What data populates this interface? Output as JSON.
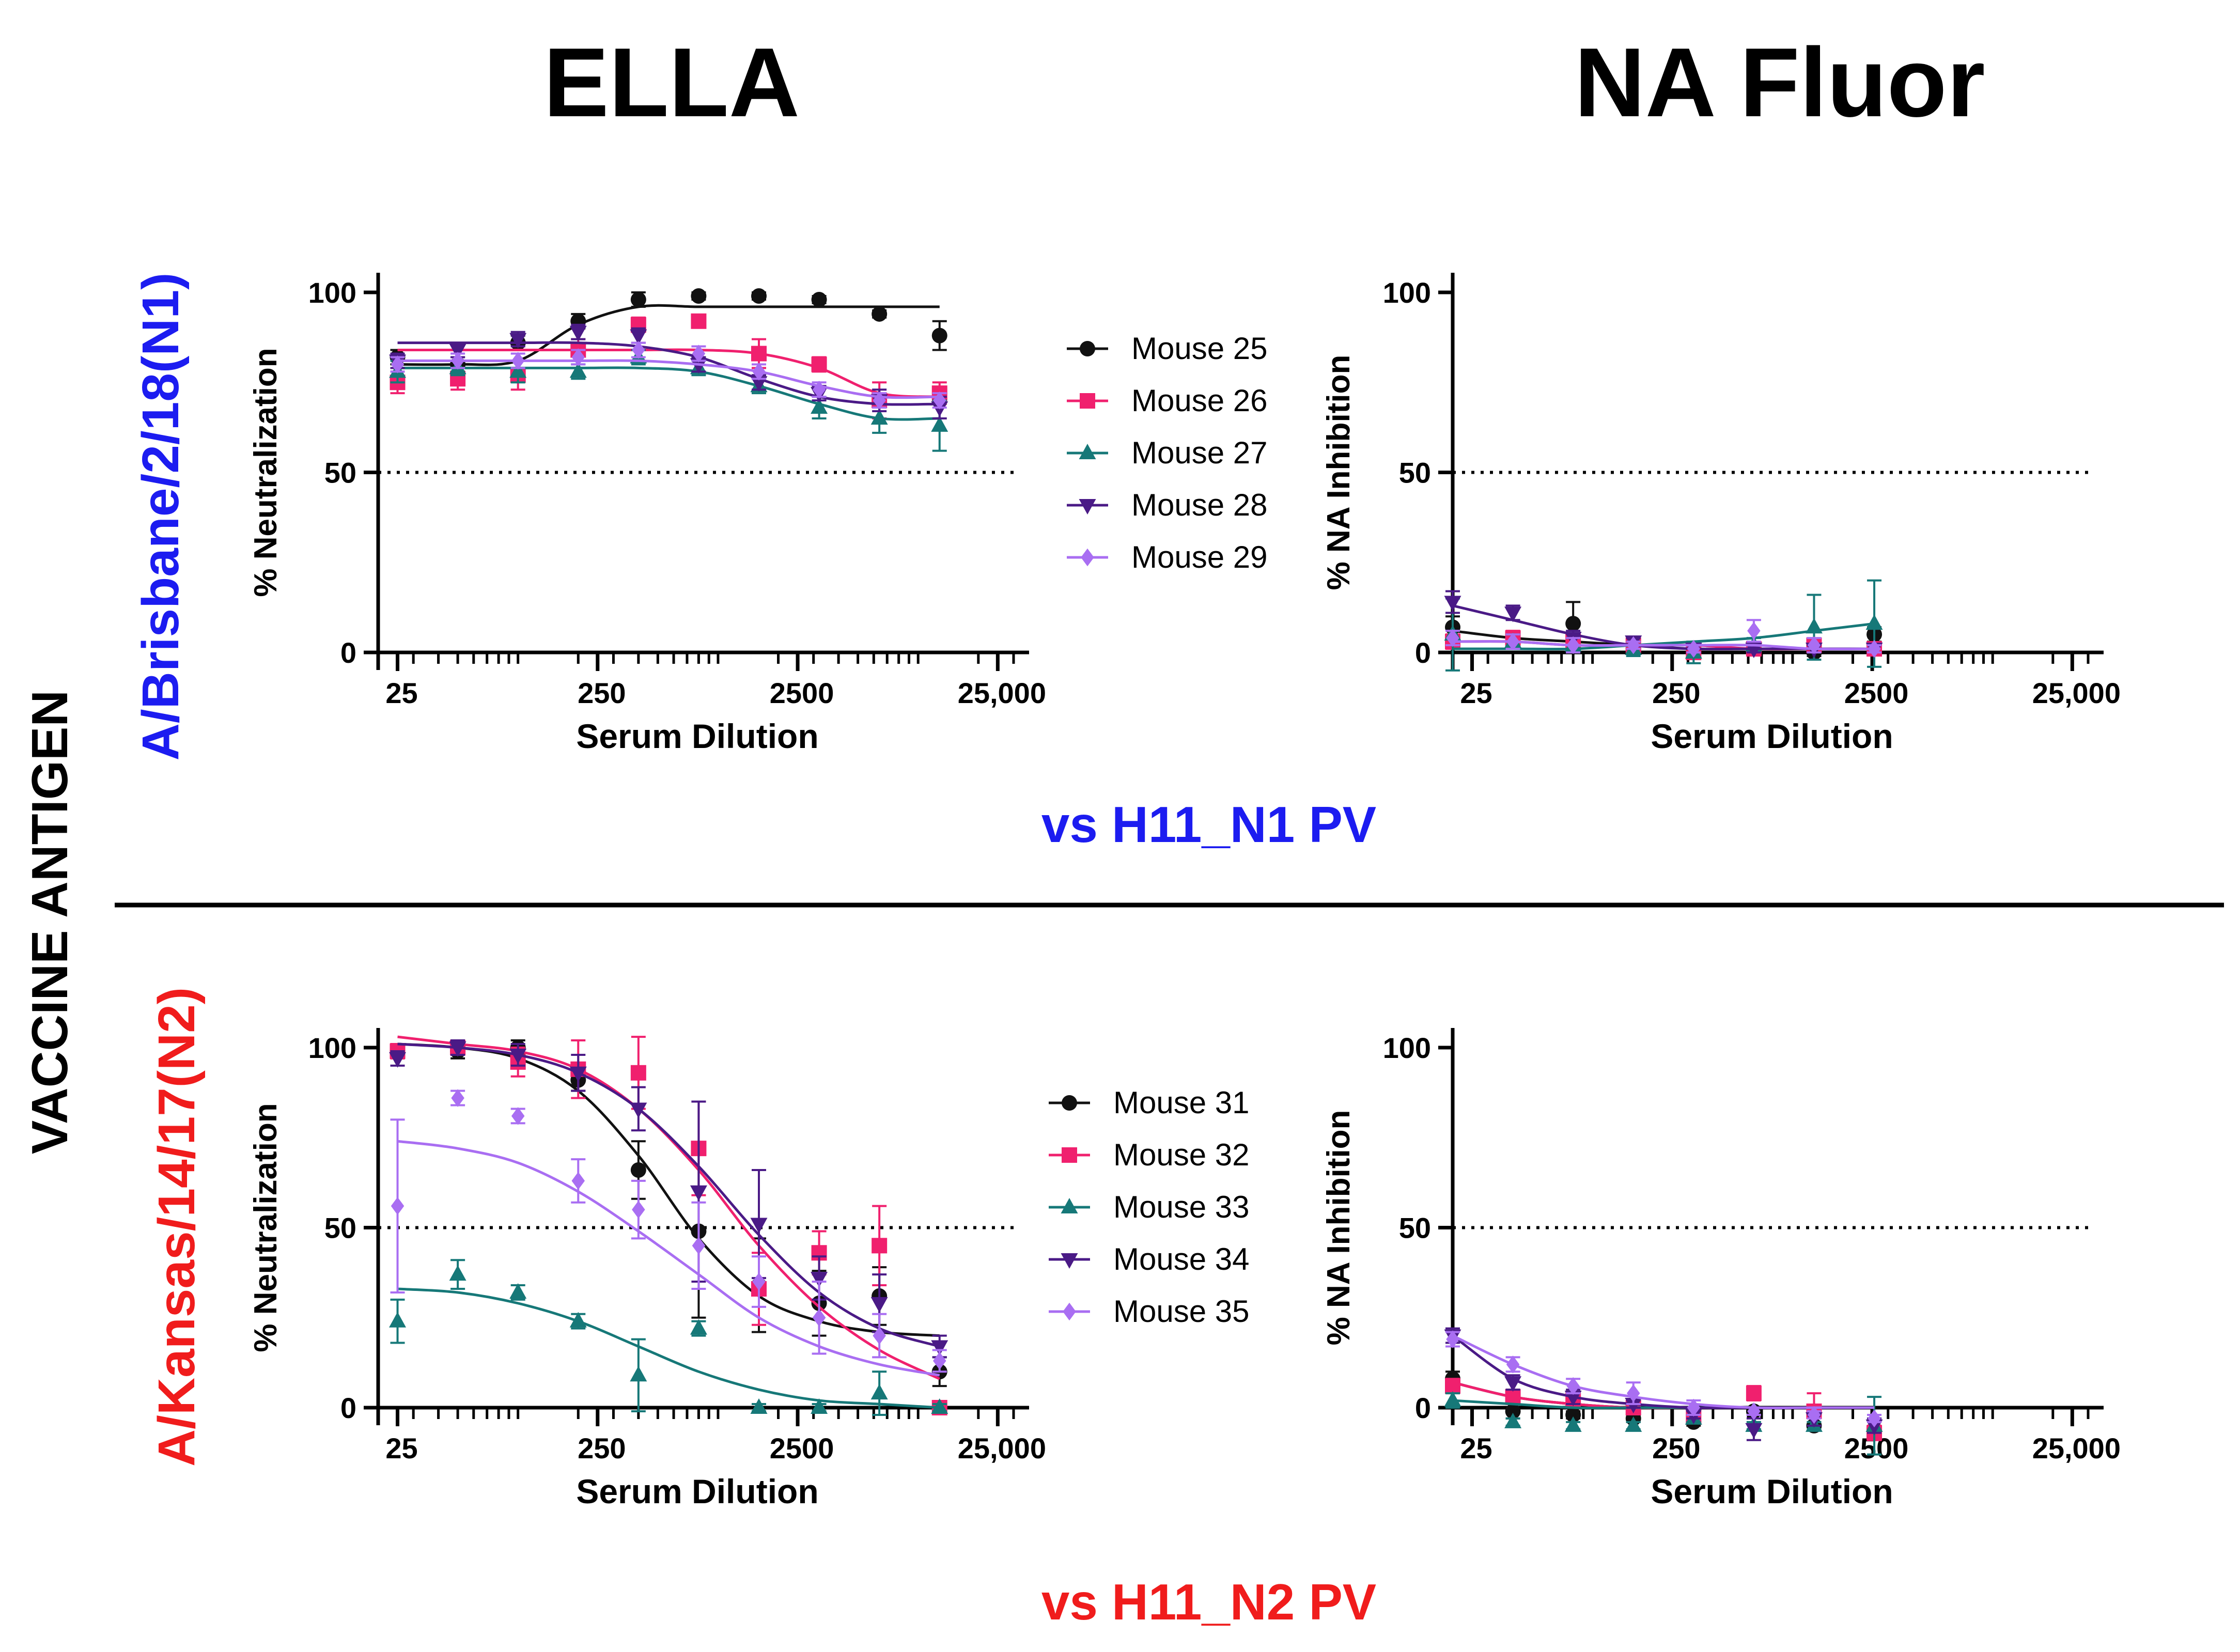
{
  "figure": {
    "col_titles": [
      "ELLA",
      "NA Fluor"
    ],
    "side_label": "VACCINE ANTIGEN",
    "rows": [
      {
        "antigen": "A/Brisbane/2/18(N1)",
        "versus": "vs H11_N1 PV",
        "color": "#1c1cf0"
      },
      {
        "antigen": "A/Kansas/14/17(N2)",
        "versus": "vs H11_N2 PV",
        "color": "#f01c1c"
      }
    ]
  },
  "chart_data": [
    {
      "id": "ella-n1",
      "type": "scatter",
      "xscale": "log",
      "xlim": [
        20,
        30000
      ],
      "ylim": [
        0,
        100
      ],
      "xticks": [
        25,
        250,
        2500,
        25000
      ],
      "xtick_labels": [
        "25",
        "250",
        "2500",
        "25,000"
      ],
      "yticks": [
        0,
        50,
        100
      ],
      "xlabel": "Serum Dilution",
      "ylabel": "% Neutralization",
      "threshold": 50,
      "x": [
        25,
        50,
        100,
        200,
        400,
        800,
        1600,
        3200,
        6400,
        12800
      ],
      "series": [
        {
          "name": "Mouse 25",
          "color": "#111111",
          "marker": "circle",
          "values": [
            82,
            80,
            86,
            92,
            98,
            99,
            99,
            98,
            94,
            88
          ],
          "errors": [
            2,
            2,
            2,
            2,
            2,
            1,
            1,
            1,
            1,
            4
          ],
          "fit": [
            80,
            80,
            81,
            91,
            96,
            96,
            96,
            96,
            96,
            96
          ]
        },
        {
          "name": "Mouse 26",
          "color": "#f0206e",
          "marker": "square",
          "values": [
            75,
            76,
            77,
            84,
            91,
            92,
            83,
            80,
            70,
            72
          ],
          "errors": [
            3,
            3,
            4,
            3,
            2,
            1,
            4,
            2,
            5,
            3
          ],
          "fit": [
            84,
            84,
            84,
            84,
            84,
            84,
            83,
            79,
            72,
            71
          ]
        },
        {
          "name": "Mouse 27",
          "color": "#167878",
          "marker": "triangle-up",
          "values": [
            78,
            79,
            78,
            78,
            82,
            79,
            74,
            68,
            65,
            63
          ],
          "errors": [
            3,
            2,
            3,
            2,
            2,
            2,
            2,
            3,
            4,
            7
          ],
          "fit": [
            79,
            79,
            79,
            79,
            79,
            78,
            74,
            69,
            65,
            65
          ]
        },
        {
          "name": "Mouse 28",
          "color": "#4a1a86",
          "marker": "triangle-down",
          "values": [
            81,
            84,
            87,
            89,
            88,
            80,
            75,
            72,
            70,
            68
          ],
          "errors": [
            2,
            2,
            2,
            2,
            2,
            2,
            2,
            2,
            3,
            3
          ],
          "fit": [
            86,
            86,
            86,
            86,
            85,
            82,
            76,
            71,
            69,
            69
          ]
        },
        {
          "name": "Mouse 29",
          "color": "#a96ef2",
          "marker": "diamond",
          "values": [
            80,
            81,
            81,
            82,
            84,
            83,
            78,
            73,
            70,
            70
          ],
          "errors": [
            2,
            2,
            2,
            2,
            2,
            2,
            2,
            2,
            2,
            2
          ],
          "fit": [
            81,
            81,
            81,
            81,
            81,
            80,
            78,
            74,
            71,
            71
          ]
        }
      ]
    },
    {
      "id": "fluor-n1",
      "type": "scatter",
      "xscale": "log",
      "xlim": [
        20,
        30000
      ],
      "ylim": [
        0,
        100
      ],
      "xticks": [
        25,
        250,
        2500,
        25000
      ],
      "xtick_labels": [
        "25",
        "250",
        "2500",
        "25,000"
      ],
      "yticks": [
        0,
        50,
        100
      ],
      "xlabel": "Serum Dilution",
      "ylabel": "% NA Inhibition",
      "threshold": 50,
      "x": [
        20,
        40,
        80,
        160,
        320,
        640,
        1280,
        2560
      ],
      "series": [
        {
          "name": "Mouse 25",
          "color": "#111111",
          "marker": "circle",
          "values": [
            7,
            3,
            8,
            1,
            0,
            1,
            0,
            5
          ],
          "errors": [
            3,
            2,
            6,
            1,
            1,
            1,
            1,
            2
          ],
          "fit": [
            6,
            4,
            3,
            2,
            1,
            1,
            1,
            1
          ]
        },
        {
          "name": "Mouse 26",
          "color": "#f0206e",
          "marker": "square",
          "values": [
            3,
            4,
            3,
            2,
            0,
            1,
            2,
            1
          ],
          "errors": [
            2,
            2,
            2,
            1,
            1,
            1,
            1,
            1
          ],
          "fit": [
            3,
            3,
            2,
            2,
            2,
            1,
            1,
            1
          ]
        },
        {
          "name": "Mouse 27",
          "color": "#167878",
          "marker": "triangle-up",
          "values": [
            5,
            3,
            2,
            1,
            0,
            2,
            7,
            8
          ],
          "errors": [
            10,
            2,
            2,
            2,
            3,
            2,
            9,
            12
          ],
          "fit": [
            1,
            1,
            1,
            2,
            3,
            4,
            6,
            8
          ]
        },
        {
          "name": "Mouse 28",
          "color": "#4a1a86",
          "marker": "triangle-down",
          "values": [
            14,
            11,
            4,
            3,
            1,
            1,
            1,
            1
          ],
          "errors": [
            3,
            2,
            2,
            1,
            1,
            1,
            1,
            1
          ],
          "fit": [
            13,
            9,
            5,
            2,
            1,
            1,
            1,
            1
          ]
        },
        {
          "name": "Mouse 29",
          "color": "#a96ef2",
          "marker": "diamond",
          "values": [
            4,
            3,
            2,
            2,
            1,
            6,
            2,
            1
          ],
          "errors": [
            2,
            2,
            2,
            1,
            1,
            3,
            2,
            1
          ],
          "fit": [
            3,
            3,
            2,
            2,
            2,
            2,
            1,
            1
          ]
        }
      ]
    },
    {
      "id": "ella-n2",
      "type": "scatter",
      "xscale": "log",
      "xlim": [
        20,
        30000
      ],
      "ylim": [
        0,
        100
      ],
      "xticks": [
        25,
        250,
        2500,
        25000
      ],
      "xtick_labels": [
        "25",
        "250",
        "2500",
        "25,000"
      ],
      "yticks": [
        0,
        50,
        100
      ],
      "xlabel": "Serum Dilution",
      "ylabel": "% Neutralization",
      "threshold": 50,
      "x": [
        25,
        50,
        100,
        200,
        400,
        800,
        1600,
        3200,
        6400,
        12800
      ],
      "series": [
        {
          "name": "Mouse 31",
          "color": "#111111",
          "marker": "circle",
          "values": [
            99,
            99,
            100,
            91,
            66,
            49,
            34,
            29,
            31,
            10
          ],
          "errors": [
            2,
            2,
            2,
            3,
            8,
            24,
            13,
            9,
            8,
            4
          ],
          "fit": [
            101,
            100,
            97,
            88,
            70,
            47,
            31,
            24,
            21,
            20
          ]
        },
        {
          "name": "Mouse 32",
          "color": "#f0206e",
          "marker": "square",
          "values": [
            99,
            100,
            96,
            94,
            93,
            72,
            33,
            43,
            45,
            0
          ],
          "errors": [
            2,
            2,
            4,
            8,
            10,
            13,
            10,
            6,
            11,
            1
          ],
          "fit": [
            103,
            101,
            99,
            94,
            83,
            66,
            45,
            28,
            16,
            8
          ]
        },
        {
          "name": "Mouse 33",
          "color": "#167878",
          "marker": "triangle-up",
          "values": [
            24,
            37,
            32,
            24,
            9,
            22,
            0,
            0,
            4,
            0
          ],
          "errors": [
            6,
            4,
            2,
            2,
            10,
            2,
            1,
            1,
            6,
            1
          ],
          "fit": [
            33,
            32,
            29,
            24,
            17,
            10,
            5,
            2,
            1,
            0
          ]
        },
        {
          "name": "Mouse 34",
          "color": "#4a1a86",
          "marker": "triangle-down",
          "values": [
            97,
            100,
            98,
            93,
            83,
            60,
            51,
            36,
            29,
            17
          ],
          "errors": [
            2,
            2,
            3,
            5,
            6,
            25,
            15,
            6,
            8,
            3
          ],
          "fit": [
            101,
            100,
            98,
            93,
            83,
            67,
            48,
            32,
            22,
            17
          ]
        },
        {
          "name": "Mouse 35",
          "color": "#a96ef2",
          "marker": "diamond",
          "values": [
            56,
            86,
            81,
            63,
            55,
            45,
            35,
            25,
            20,
            13
          ],
          "errors": [
            24,
            2,
            2,
            6,
            8,
            12,
            7,
            10,
            6,
            3
          ],
          "fit": [
            74,
            72,
            68,
            60,
            49,
            37,
            25,
            17,
            12,
            9
          ]
        }
      ]
    },
    {
      "id": "fluor-n2",
      "type": "scatter",
      "xscale": "log",
      "xlim": [
        20,
        30000
      ],
      "ylim": [
        0,
        100
      ],
      "xticks": [
        25,
        250,
        2500,
        25000
      ],
      "xtick_labels": [
        "25",
        "250",
        "2500",
        "25,000"
      ],
      "yticks": [
        0,
        50,
        100
      ],
      "xlabel": "Serum Dilution",
      "ylabel": "% NA Inhibition",
      "threshold": 50,
      "x": [
        20,
        40,
        80,
        160,
        320,
        640,
        1280,
        2560
      ],
      "series": [
        {
          "name": "Mouse 31",
          "color": "#111111",
          "marker": "circle",
          "values": [
            8,
            -1,
            -2,
            -3,
            -4,
            -1,
            -5,
            -6
          ],
          "errors": [
            2,
            2,
            1,
            1,
            1,
            1,
            1,
            2
          ],
          "fit": [
            7,
            3,
            1,
            0,
            0,
            0,
            0,
            0
          ]
        },
        {
          "name": "Mouse 32",
          "color": "#f0206e",
          "marker": "square",
          "values": [
            6,
            3,
            2,
            0,
            -2,
            4,
            -1,
            -7
          ],
          "errors": [
            2,
            2,
            2,
            1,
            2,
            2,
            5,
            2
          ],
          "fit": [
            7,
            3,
            1,
            0,
            0,
            0,
            0,
            0
          ]
        },
        {
          "name": "Mouse 33",
          "color": "#167878",
          "marker": "triangle-up",
          "values": [
            2,
            -4,
            -5,
            -5,
            -3,
            -5,
            -5,
            -5
          ],
          "errors": [
            2,
            1,
            1,
            1,
            1,
            1,
            1,
            8
          ],
          "fit": [
            2,
            1,
            0,
            0,
            0,
            0,
            0,
            0
          ]
        },
        {
          "name": "Mouse 34",
          "color": "#4a1a86",
          "marker": "triangle-down",
          "values": [
            20,
            7,
            3,
            1,
            -2,
            -6,
            -3,
            -5
          ],
          "errors": [
            2,
            2,
            2,
            1,
            1,
            3,
            2,
            2
          ],
          "fit": [
            20,
            8,
            3,
            1,
            0,
            0,
            0,
            0
          ]
        },
        {
          "name": "Mouse 35",
          "color": "#a96ef2",
          "marker": "diamond",
          "values": [
            19,
            12,
            6,
            4,
            0,
            -1,
            -2,
            -3
          ],
          "errors": [
            2,
            2,
            2,
            3,
            2,
            1,
            1,
            1
          ],
          "fit": [
            20,
            12,
            6,
            3,
            1,
            0,
            0,
            0
          ]
        }
      ]
    }
  ]
}
